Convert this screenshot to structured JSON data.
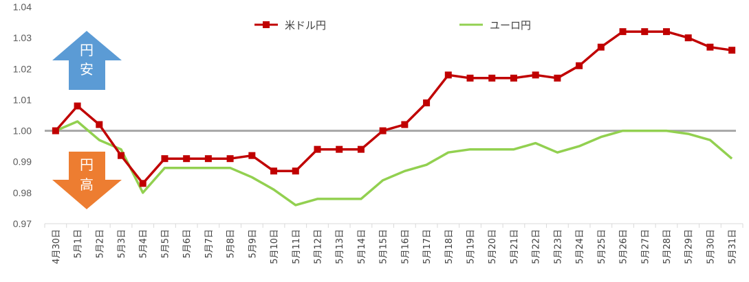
{
  "chart_data": {
    "type": "line",
    "categories": [
      "4月30日",
      "5月1日",
      "5月2日",
      "5月3日",
      "5月4日",
      "5月5日",
      "5月6日",
      "5月7日",
      "5月8日",
      "5月9日",
      "5月10日",
      "5月11日",
      "5月12日",
      "5月13日",
      "5月14日",
      "5月15日",
      "5月16日",
      "5月17日",
      "5月18日",
      "5月19日",
      "5月20日",
      "5月21日",
      "5月22日",
      "5月23日",
      "5月24日",
      "5月25日",
      "5月26日",
      "5月27日",
      "5月28日",
      "5月29日",
      "5月30日",
      "5月31日"
    ],
    "series": [
      {
        "name": "米ドル円",
        "color": "#c00000",
        "marker": "square",
        "values": [
          1.0,
          1.008,
          1.002,
          0.992,
          0.983,
          0.991,
          0.991,
          0.991,
          0.991,
          0.992,
          0.987,
          0.987,
          0.994,
          0.994,
          0.994,
          1.0,
          1.002,
          1.009,
          1.018,
          1.017,
          1.017,
          1.017,
          1.018,
          1.017,
          1.021,
          1.027,
          1.032,
          1.032,
          1.032,
          1.03,
          1.027,
          1.026
        ]
      },
      {
        "name": "ユーロ円",
        "color": "#92d050",
        "marker": "none",
        "values": [
          1.0,
          1.003,
          0.997,
          0.994,
          0.98,
          0.988,
          0.988,
          0.988,
          0.988,
          0.985,
          0.981,
          0.976,
          0.978,
          0.978,
          0.978,
          0.984,
          0.987,
          0.989,
          0.993,
          0.994,
          0.994,
          0.994,
          0.996,
          0.993,
          0.995,
          0.998,
          1.0,
          1.0,
          1.0,
          0.999,
          0.997,
          0.991
        ]
      }
    ],
    "baseline": {
      "value": 1.0,
      "color": "#a6a6a6"
    },
    "ylim": [
      0.97,
      1.04
    ],
    "yticks": [
      "0.97",
      "0.98",
      "0.99",
      "1.00",
      "1.01",
      "1.02",
      "1.03",
      "1.04"
    ],
    "grid": false,
    "legend_position": "top"
  },
  "annotations": {
    "up_arrow": {
      "line1": "円",
      "line2": "安",
      "color": "#5b9bd5"
    },
    "down_arrow": {
      "line1": "円",
      "line2": "高",
      "color": "#ed7d31"
    }
  }
}
